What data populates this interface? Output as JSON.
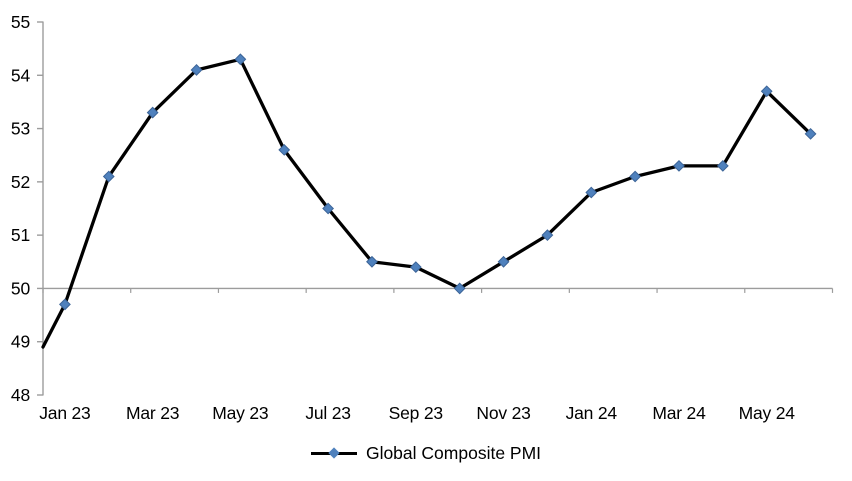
{
  "chart_data": {
    "type": "line",
    "title": "",
    "legend": {
      "label": "Global Composite PMI",
      "position": "bottom"
    },
    "series": [
      {
        "name": "Global Composite PMI",
        "categories": [
          "Jan 23",
          "Feb 23",
          "Mar 23",
          "Apr 23",
          "May 23",
          "Jun 23",
          "Jul 23",
          "Aug 23",
          "Sep 23",
          "Oct 23",
          "Nov 23",
          "Dec 23",
          "Jan 24",
          "Feb 24",
          "Mar 24",
          "Apr 24",
          "May 24",
          "Jun 24"
        ],
        "values": [
          49.7,
          52.1,
          53.3,
          54.1,
          54.3,
          52.6,
          51.5,
          50.5,
          50.4,
          50.0,
          50.5,
          51.0,
          51.8,
          52.1,
          52.3,
          52.3,
          53.7,
          52.9
        ],
        "lead_in_value_at_axis": 48.9
      }
    ],
    "x_tick_labels": [
      "Jan 23",
      "Mar 23",
      "May 23",
      "Jul 23",
      "Sep 23",
      "Nov 23",
      "Jan 24",
      "Mar 24",
      "May 24"
    ],
    "x_label_interval_months": 2,
    "ylim": [
      48,
      55
    ],
    "ytick_step": 1,
    "axis_crossing_y": 50,
    "grid": "none",
    "marker_shape": "diamond",
    "colors": {
      "line": "#000000",
      "marker": "#4F81BD",
      "marker_border": "#3C6497",
      "axis": "#9C9C9C",
      "text": "#000000",
      "background": "#FFFFFF"
    }
  }
}
